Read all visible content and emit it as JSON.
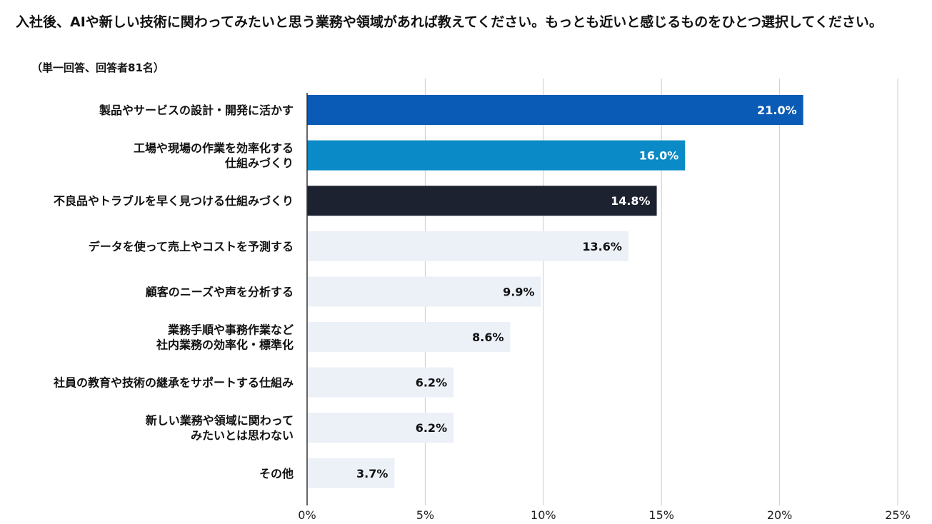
{
  "chart_data": {
    "type": "bar",
    "orientation": "horizontal",
    "title": "入社後、AIや新しい技術に関わってみたいと思う業務や領域があれば教えてください。もっとも近いと感じるものをひとつ選択してください。",
    "subtitle": "（単一回答、回答者81名）",
    "categories": [
      "製品やサービスの設計・開発に活かす",
      "工場や現場の作業を効率化する\n仕組みづくり",
      "不良品やトラブルを早く見つける仕組みづくり",
      "データを使って売上やコストを予測する",
      "顧客のニーズや声を分析する",
      "業務手順や事務作業など\n社内業務の効率化・標準化",
      "社員の教育や技術の継承をサポートする仕組み",
      "新しい業務や領域に関わって\nみたいとは思わない",
      "その他"
    ],
    "values": [
      21.0,
      16.0,
      14.8,
      13.6,
      9.9,
      8.6,
      6.2,
      6.2,
      3.7
    ],
    "value_labels": [
      "21.0%",
      "16.0%",
      "14.8%",
      "13.6%",
      "9.9%",
      "8.6%",
      "6.2%",
      "6.2%",
      "3.7%"
    ],
    "xlim": [
      0,
      25
    ],
    "xticks": [
      0,
      5,
      10,
      15,
      20,
      25
    ],
    "xtick_labels": [
      "0%",
      "5%",
      "10%",
      "15%",
      "20%",
      "25%"
    ],
    "grid": true,
    "bar_colors": [
      "#0a5bb5",
      "#0a8ac6",
      "#1d2230",
      "#ecf0f7",
      "#ecf0f7",
      "#ecf0f7",
      "#ecf0f7",
      "#ecf0f7",
      "#ecf0f7"
    ],
    "label_colors": [
      "#ffffff",
      "#ffffff",
      "#ffffff",
      "#111111",
      "#111111",
      "#111111",
      "#111111",
      "#111111",
      "#111111"
    ],
    "grid_color": "#cccccc",
    "axis_color": "#333333"
  }
}
